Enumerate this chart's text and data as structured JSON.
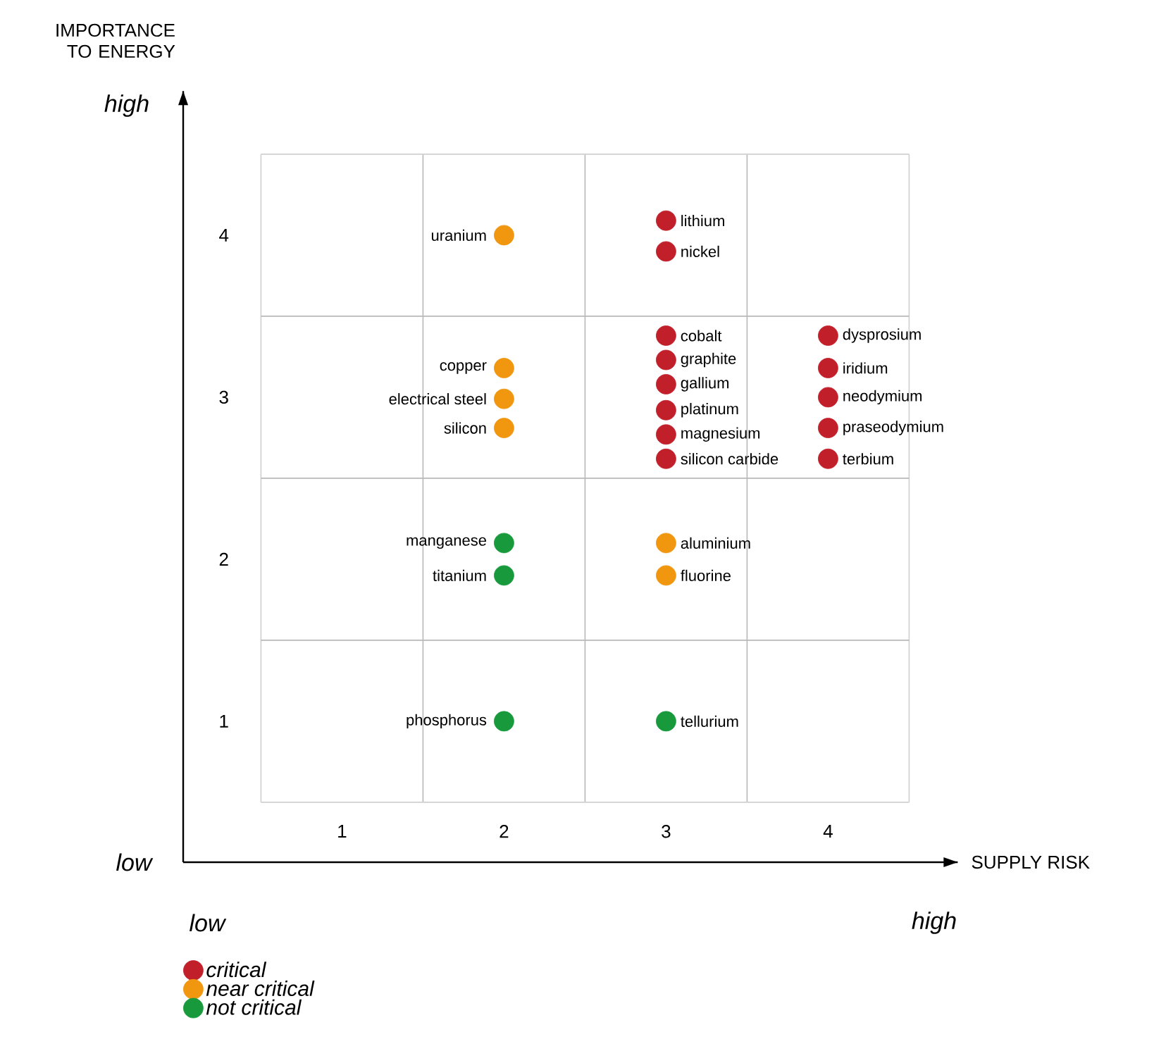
{
  "chart_data": {
    "type": "scatter",
    "xlabel": "SUPPLY RISK",
    "ylabel": "IMPORTANCE TO ENERGY",
    "xlim": [
      0.02,
      4.8
    ],
    "ylim": [
      0.13,
      4.89
    ],
    "xticks": [
      1,
      2,
      3,
      4
    ],
    "yticks": [
      1,
      2,
      3,
      4
    ],
    "legend": "bottom left",
    "series": [
      {
        "name": "critical",
        "color": "#c1202b",
        "x": [
          3,
          3,
          3,
          3,
          3,
          3,
          3,
          3,
          4,
          4,
          4,
          4,
          4
        ],
        "values": [
          4.09,
          3.9,
          3.38,
          3.23,
          3.08,
          2.92,
          2.77,
          2.62,
          3.38,
          3.18,
          3.0,
          2.81,
          2.62
        ]
      },
      {
        "name": "near critical",
        "color": "#f0960f",
        "x": [
          2,
          2,
          2,
          2,
          3,
          3
        ],
        "values": [
          4.0,
          3.18,
          2.99,
          2.81,
          2.1,
          1.9
        ]
      },
      {
        "name": "not critical",
        "color": "#189a3c",
        "x": [
          2,
          2,
          2,
          3
        ],
        "values": [
          2.1,
          1.9,
          1.0,
          1.0
        ]
      }
    ],
    "ref_lines": [
      {
        "axis": "x",
        "value": 0.5,
        "color": "#d0d0d0"
      },
      {
        "axis": "x",
        "value": 1.5,
        "color": "#b8b8b8"
      },
      {
        "axis": "x",
        "value": 2.5,
        "color": "#b8b8b8"
      },
      {
        "axis": "x",
        "value": 3.5,
        "color": "#b8b8b8"
      },
      {
        "axis": "x",
        "value": 4.5,
        "color": "#d0d0d0"
      },
      {
        "axis": "y",
        "value": 0.5,
        "color": "#d0d0d0"
      },
      {
        "axis": "y",
        "value": 1.5,
        "color": "#b8b8b8"
      },
      {
        "axis": "y",
        "value": 2.5,
        "color": "#b8b8b8"
      },
      {
        "axis": "y",
        "value": 3.5,
        "color": "#b8b8b8"
      },
      {
        "axis": "y",
        "value": 4.5,
        "color": "#d0d0d0"
      }
    ],
    "annotations": [
      "low",
      "high",
      "low",
      "high",
      {
        "text": "lithium",
        "x": 3,
        "y": 4.09
      },
      {
        "text": "nickel",
        "x": 3,
        "y": 3.9
      },
      {
        "text": "cobalt",
        "x": 3,
        "y": 3.38
      },
      {
        "text": "graphite",
        "x": 3,
        "y": 3.23
      },
      {
        "text": "gallium",
        "x": 3,
        "y": 3.08
      },
      {
        "text": "platinum",
        "x": 3,
        "y": 2.92
      },
      {
        "text": "magnesium",
        "x": 3,
        "y": 2.77
      },
      {
        "text": "silicon carbide",
        "x": 3,
        "y": 2.62
      },
      {
        "text": "dysprosium",
        "x": 4,
        "y": 3.38
      },
      {
        "text": "iridium",
        "x": 4,
        "y": 3.18
      },
      {
        "text": "neodymium",
        "x": 4,
        "y": 3.0
      },
      {
        "text": "praseodymium",
        "x": 4,
        "y": 2.81
      },
      {
        "text": "terbium",
        "x": 4,
        "y": 2.62
      },
      {
        "text": "uranium",
        "x": 2,
        "y": 4.0
      },
      {
        "text": "copper",
        "x": 2,
        "y": 3.18
      },
      {
        "text": "electrical steel",
        "x": 2,
        "y": 2.99
      },
      {
        "text": "silicon",
        "x": 2,
        "y": 2.81
      },
      {
        "text": "aluminium",
        "x": 3,
        "y": 2.1
      },
      {
        "text": "fluorine",
        "x": 3,
        "y": 1.9
      },
      {
        "text": "manganese",
        "x": 2,
        "y": 2.1
      },
      {
        "text": "titanium",
        "x": 2,
        "y": 1.9
      },
      {
        "text": "phosphorus",
        "x": 2,
        "y": 1.0
      },
      {
        "text": "tellurium",
        "x": 3,
        "y": 1.0
      }
    ]
  }
}
